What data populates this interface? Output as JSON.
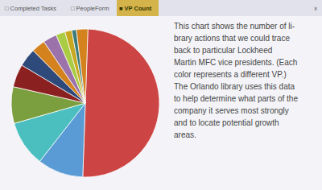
{
  "chart_data": {
    "type": "pie",
    "values": [
      50,
      10,
      10,
      8,
      5,
      4,
      3,
      3,
      2,
      1.5,
      1.0,
      2.5
    ],
    "colors": [
      "#CC4444",
      "#5B9BD5",
      "#4BBFBF",
      "#7B9E3E",
      "#8B2020",
      "#2E4A7A",
      "#D4821E",
      "#9B72AA",
      "#AACC44",
      "#C8A820",
      "#3A7A7A",
      "#D4821E"
    ],
    "annotations": [
      "□ Completed Tasks",
      "□ PeopleForm",
      "■ VP Count",
      "x",
      "This chart shows the number of li-\nbrary actions that we could trace\nback to particular Lockheed\nMartin MFC vice presidents. (Each\ncolor represents a different VP.)\nThe Orlando library uses this data\nto help determine what parts of the\ncompany it serves most strongly\nand to locate potential growth\nareas."
    ]
  }
}
